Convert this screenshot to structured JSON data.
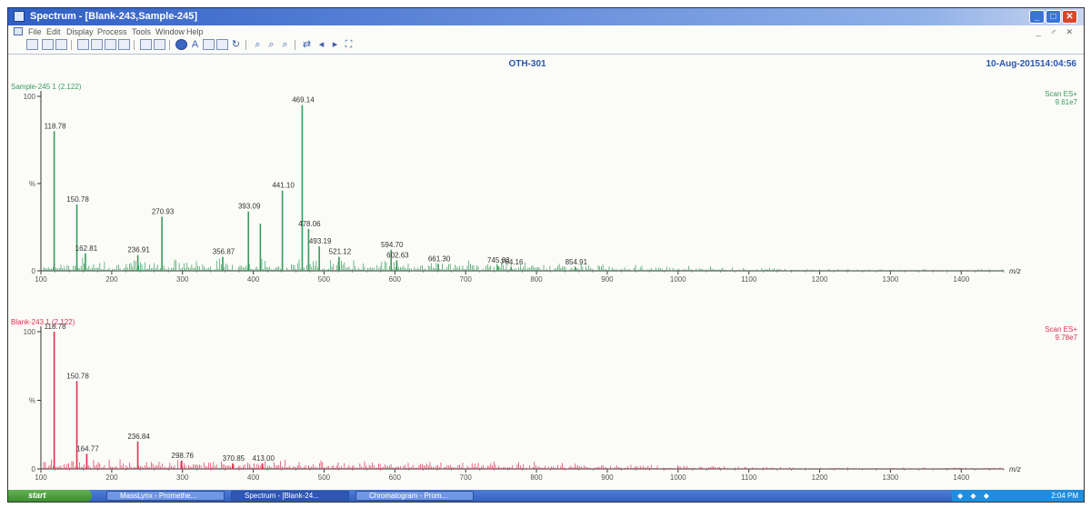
{
  "window": {
    "title": "Spectrum - [Blank-243,Sample-245]",
    "controls": {
      "minimize": "_",
      "maximize": "□",
      "close": "✕"
    }
  },
  "menu": {
    "items": [
      "File",
      "Edit",
      "Display",
      "Process",
      "Tools",
      "Window",
      "Help"
    ],
    "mdi_controls": "_ ♂ ✕"
  },
  "toolbar": {
    "icons": [
      "open-icon",
      "print-icon",
      "print-preview-icon",
      "copy-icon",
      "paste-icon",
      "export-icon",
      "list-icon",
      "window-icon",
      "peak-detect-icon",
      "text-icon",
      "edit-icon",
      "library-icon",
      "refresh-icon",
      "zoom-in-icon",
      "zoom-x-icon",
      "zoom-y-icon",
      "pointer-icon",
      "move-left-icon",
      "move-right-icon",
      "fullscreen-icon"
    ]
  },
  "header": {
    "compound": "OTH-301",
    "datetime": "10-Aug-201514:04:56"
  },
  "chart_data": [
    {
      "type": "bar",
      "panel": "top",
      "sample_label": "Sample-245 1 (2.122)",
      "scan_label": "Scan ES+",
      "intensity": "9.61e7",
      "xlabel": "m/z",
      "color": "#3a9a5c",
      "xlim": [
        100,
        1460
      ],
      "ylim": [
        0,
        100
      ],
      "x_ticks": [
        "100",
        "200",
        "300",
        "400",
        "500",
        "600",
        "700",
        "800",
        "900",
        "1000",
        "1100",
        "1200",
        "1300",
        "1400"
      ],
      "y_ticks": [
        "0",
        "%",
        "100"
      ],
      "peaks": [
        {
          "x": 118.78,
          "y": 80,
          "label": "118.78"
        },
        {
          "x": 150.78,
          "y": 38,
          "label": "150.78"
        },
        {
          "x": 162.81,
          "y": 10,
          "label": "162.81"
        },
        {
          "x": 236.91,
          "y": 9,
          "label": "236.91"
        },
        {
          "x": 270.93,
          "y": 31,
          "label": "270.93"
        },
        {
          "x": 356.87,
          "y": 8,
          "label": "356.87"
        },
        {
          "x": 393.09,
          "y": 34,
          "label": "393.09"
        },
        {
          "x": 410.0,
          "y": 27,
          "label": ""
        },
        {
          "x": 441.1,
          "y": 46,
          "label": "441.10"
        },
        {
          "x": 469.14,
          "y": 95,
          "label": "469.14"
        },
        {
          "x": 478.06,
          "y": 24,
          "label": "478.06"
        },
        {
          "x": 493.19,
          "y": 14,
          "label": "493.19"
        },
        {
          "x": 521.12,
          "y": 8,
          "label": "521.12"
        },
        {
          "x": 594.7,
          "y": 12,
          "label": "594.70"
        },
        {
          "x": 602.63,
          "y": 6,
          "label": "602.63"
        },
        {
          "x": 661.3,
          "y": 4,
          "label": "661.30"
        },
        {
          "x": 745.03,
          "y": 3,
          "label": "745.03"
        },
        {
          "x": 764.16,
          "y": 2,
          "label": "764.16"
        },
        {
          "x": 854.91,
          "y": 2,
          "label": "854.91"
        }
      ]
    },
    {
      "type": "bar",
      "panel": "bottom",
      "sample_label": "Blank-243 1 (2.122)",
      "scan_label": "Scan ES+",
      "intensity": "9.78e7",
      "xlabel": "m/z",
      "color": "#e0304f",
      "xlim": [
        100,
        1460
      ],
      "ylim": [
        0,
        100
      ],
      "x_ticks": [
        "100",
        "200",
        "300",
        "400",
        "500",
        "600",
        "700",
        "800",
        "900",
        "1000",
        "1100",
        "1200",
        "1300",
        "1400"
      ],
      "y_ticks": [
        "0",
        "%",
        "100"
      ],
      "peaks": [
        {
          "x": 118.78,
          "y": 100,
          "label": "118.78"
        },
        {
          "x": 150.78,
          "y": 64,
          "label": "150.78"
        },
        {
          "x": 164.77,
          "y": 11,
          "label": "164.77"
        },
        {
          "x": 236.84,
          "y": 20,
          "label": "236.84"
        },
        {
          "x": 298.76,
          "y": 6,
          "label": "298.76"
        },
        {
          "x": 370.85,
          "y": 4,
          "label": "370.85"
        },
        {
          "x": 413.0,
          "y": 4,
          "label": "413.00"
        }
      ]
    }
  ],
  "taskbar": {
    "start_label": "start",
    "tasks": [
      "MassLynx - Promethe...",
      "Spectrum - [Blank-24...",
      "Chromatogram - Prom..."
    ],
    "tray_icons": "◆ ◆ ◆",
    "clock": "2:04 PM"
  }
}
